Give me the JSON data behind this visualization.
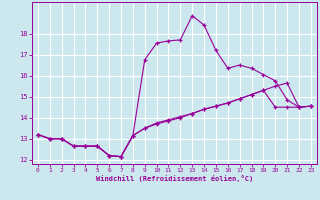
{
  "xlabel": "Windchill (Refroidissement éolien,°C)",
  "bg_color": "#cce8ee",
  "line_color": "#990099",
  "grid_color": "#ffffff",
  "xlim": [
    -0.5,
    23.5
  ],
  "ylim": [
    11.8,
    19.5
  ],
  "yticks": [
    12,
    13,
    14,
    15,
    16,
    17,
    18
  ],
  "xticks": [
    0,
    1,
    2,
    3,
    4,
    5,
    6,
    7,
    8,
    9,
    10,
    11,
    12,
    13,
    14,
    15,
    16,
    17,
    18,
    19,
    20,
    21,
    22,
    23
  ],
  "line1_x": [
    0,
    1,
    2,
    3,
    4,
    5,
    6,
    7,
    8,
    9,
    10,
    11,
    12,
    13,
    14,
    15,
    16,
    17,
    18,
    19,
    20,
    21,
    22,
    23
  ],
  "line1_y": [
    13.2,
    13.0,
    13.0,
    12.65,
    12.65,
    12.65,
    12.2,
    12.15,
    13.15,
    16.75,
    17.55,
    17.65,
    17.7,
    18.85,
    18.4,
    17.2,
    16.35,
    16.5,
    16.35,
    16.05,
    15.75,
    14.85,
    14.5,
    14.55
  ],
  "line2_x": [
    0,
    1,
    2,
    3,
    4,
    5,
    6,
    7,
    8,
    9,
    10,
    11,
    12,
    13,
    14,
    15,
    16,
    17,
    18,
    19,
    20,
    21,
    22,
    23
  ],
  "line2_y": [
    13.2,
    13.0,
    13.0,
    12.65,
    12.65,
    12.65,
    12.2,
    12.15,
    13.15,
    13.5,
    13.7,
    13.85,
    14.0,
    14.2,
    14.4,
    14.55,
    14.7,
    14.9,
    15.1,
    15.3,
    15.5,
    15.65,
    14.5,
    14.55
  ],
  "line3_x": [
    0,
    1,
    2,
    3,
    4,
    5,
    6,
    7,
    8,
    9,
    10,
    11,
    12,
    13,
    14,
    15,
    16,
    17,
    18,
    19,
    20,
    21,
    22,
    23
  ],
  "line3_y": [
    13.2,
    13.0,
    13.0,
    12.65,
    12.65,
    12.65,
    12.2,
    12.15,
    13.15,
    13.5,
    13.75,
    13.9,
    14.05,
    14.2,
    14.4,
    14.55,
    14.7,
    14.9,
    15.1,
    15.3,
    14.5,
    14.5,
    14.5,
    14.55
  ]
}
